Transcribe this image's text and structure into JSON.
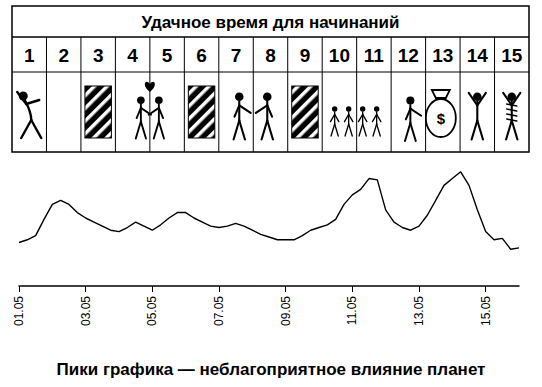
{
  "header": {
    "title": "Удачное время для начинаний",
    "days": [
      1,
      2,
      3,
      4,
      5,
      6,
      7,
      8,
      9,
      10,
      11,
      12,
      13,
      14,
      15
    ],
    "bag_label": "$"
  },
  "chart_data": {
    "type": "line",
    "title": "Пики графика — неблагоприятное влияние планет",
    "categories": [
      "01.05",
      null,
      null,
      null,
      null,
      null,
      null,
      null,
      "03.05",
      null,
      null,
      null,
      null,
      null,
      null,
      null,
      "05.05",
      null,
      null,
      null,
      null,
      null,
      null,
      null,
      "07.05",
      null,
      null,
      null,
      null,
      null,
      null,
      null,
      "09.05",
      null,
      null,
      null,
      null,
      null,
      null,
      null,
      "11.05",
      null,
      null,
      null,
      null,
      null,
      null,
      null,
      "13.05",
      null,
      null,
      null,
      null,
      null,
      null,
      null,
      "15.05",
      null,
      null,
      null,
      null
    ],
    "values": [
      32,
      34,
      37,
      49,
      60,
      63,
      60,
      54,
      50,
      47,
      44,
      41,
      40,
      43,
      47,
      44,
      41,
      45,
      50,
      54,
      54,
      50,
      47,
      44,
      43,
      44,
      46,
      44,
      41,
      38,
      36,
      34,
      34,
      34,
      37,
      41,
      43,
      45,
      49,
      60,
      67,
      71,
      79,
      78,
      56,
      47,
      43,
      41,
      44,
      52,
      63,
      74,
      79,
      84,
      74,
      56,
      40,
      34,
      35,
      27,
      28
    ],
    "color": "#000000",
    "ylim": [
      0,
      100
    ],
    "yticks": [
      0,
      100
    ],
    "tick_labels": "x",
    "grid": false
  }
}
